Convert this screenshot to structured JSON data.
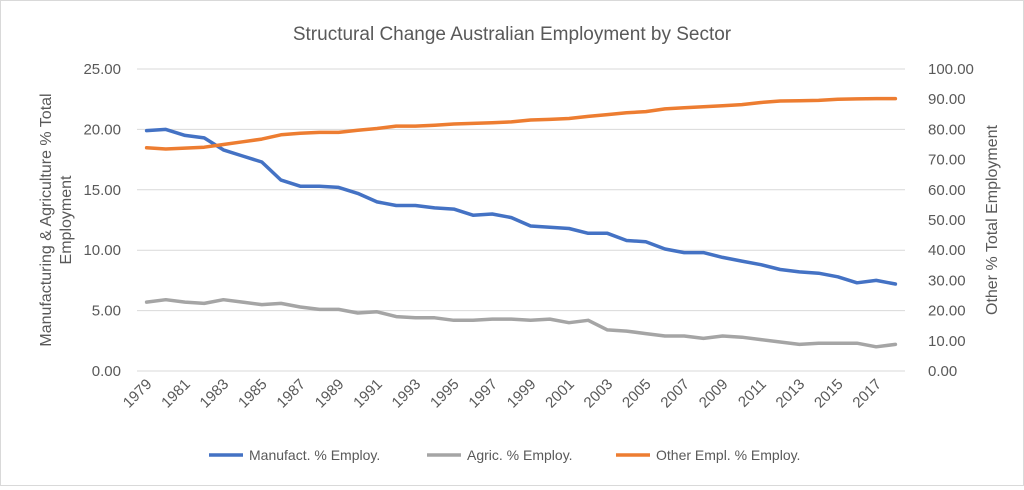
{
  "chart_data": {
    "type": "line",
    "title": "Structural Change Australian Employment by Sector",
    "ylabel_left": [
      "Manufacturing & Agriculture  % Total",
      "Employment"
    ],
    "ylabel_right": "Other % Total Employment",
    "ylim_left": [
      0,
      25
    ],
    "ylim_right": [
      0,
      100
    ],
    "yticks_left": [
      "0.00",
      "5.00",
      "10.00",
      "15.00",
      "20.00",
      "25.00"
    ],
    "yticks_right": [
      "0.00",
      "10.00",
      "20.00",
      "30.00",
      "40.00",
      "50.00",
      "60.00",
      "70.00",
      "80.00",
      "90.00",
      "100.00"
    ],
    "x": [
      1979,
      1980,
      1981,
      1982,
      1983,
      1984,
      1985,
      1986,
      1987,
      1988,
      1989,
      1990,
      1991,
      1992,
      1993,
      1994,
      1995,
      1996,
      1997,
      1998,
      1999,
      2000,
      2001,
      2002,
      2003,
      2004,
      2005,
      2006,
      2007,
      2008,
      2009,
      2010,
      2011,
      2012,
      2013,
      2014,
      2015,
      2016,
      2017,
      2018
    ],
    "xtick_labels": [
      "1979",
      "1981",
      "1983",
      "1985",
      "1987",
      "1989",
      "1991",
      "1993",
      "1995",
      "1997",
      "1999",
      "2001",
      "2003",
      "2005",
      "2007",
      "2009",
      "2011",
      "2013",
      "2015",
      "2017"
    ],
    "series": [
      {
        "name": "Manufact. % Employ.",
        "axis": "left",
        "color": "#4472c4",
        "values": [
          19.9,
          20.0,
          19.5,
          19.3,
          18.3,
          17.8,
          17.3,
          15.8,
          15.3,
          15.3,
          15.2,
          14.7,
          14.0,
          13.7,
          13.7,
          13.5,
          13.4,
          12.9,
          13.0,
          12.7,
          12.0,
          11.9,
          11.8,
          11.4,
          11.4,
          10.8,
          10.7,
          10.1,
          9.8,
          9.8,
          9.4,
          9.1,
          8.8,
          8.4,
          8.2,
          8.1,
          7.8,
          7.3,
          7.5,
          7.2
        ]
      },
      {
        "name": "Agric. % Employ.",
        "axis": "left",
        "color": "#a5a5a5",
        "values": [
          5.7,
          5.9,
          5.7,
          5.6,
          5.9,
          5.7,
          5.5,
          5.6,
          5.3,
          5.1,
          5.1,
          4.8,
          4.9,
          4.5,
          4.4,
          4.4,
          4.2,
          4.2,
          4.3,
          4.3,
          4.2,
          4.3,
          4.0,
          4.2,
          3.4,
          3.3,
          3.1,
          2.9,
          2.9,
          2.7,
          2.9,
          2.8,
          2.6,
          2.4,
          2.2,
          2.3,
          2.3,
          2.3,
          2.0,
          2.2
        ]
      },
      {
        "name": "Other Empl. % Employ.",
        "axis": "right",
        "color": "#ed7d31",
        "values": [
          73.9,
          73.5,
          73.8,
          74.1,
          75.0,
          75.9,
          76.8,
          78.2,
          78.7,
          79.0,
          79.0,
          79.7,
          80.3,
          81.1,
          81.1,
          81.4,
          81.8,
          82.0,
          82.2,
          82.5,
          83.1,
          83.3,
          83.6,
          84.3,
          84.9,
          85.5,
          85.9,
          86.8,
          87.2,
          87.5,
          87.8,
          88.2,
          88.9,
          89.4,
          89.5,
          89.6,
          90.0,
          90.1,
          90.2,
          90.2
        ]
      }
    ],
    "legend": "bottom",
    "grid": true
  }
}
